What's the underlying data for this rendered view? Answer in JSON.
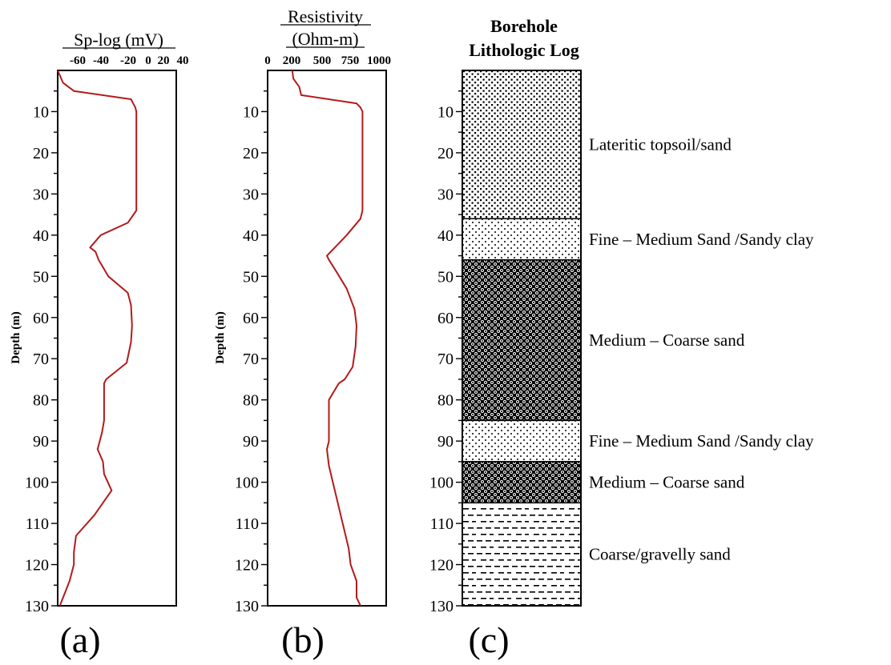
{
  "panel_a": {
    "title": "Sp-log (mV)",
    "tick_labels": [
      "-60",
      "-40",
      "-20",
      "0",
      "20",
      "40"
    ],
    "ylabel": "Depth (m)",
    "y_tick_labels": [
      "10",
      "20",
      "30",
      "40",
      "50",
      "60",
      "70",
      "80",
      "90",
      "100",
      "110",
      "120",
      "130"
    ],
    "panel_label": "(a)"
  },
  "panel_b": {
    "title_line1": "Resistivity",
    "title_line2": "(Ohm-m)",
    "tick_labels": [
      "0",
      "200",
      "500",
      "750",
      "1000"
    ],
    "ylabel": "Depth (m)",
    "y_tick_labels": [
      "10",
      "20",
      "30",
      "40",
      "50",
      "60",
      "70",
      "80",
      "90",
      "100",
      "110",
      "120",
      "130"
    ],
    "panel_label": "(b)"
  },
  "panel_c": {
    "title_line1": "Borehole",
    "title_line2": "Lithologic Log",
    "y_tick_labels": [
      "10",
      "20",
      "30",
      "40",
      "50",
      "60",
      "70",
      "80",
      "90",
      "100",
      "110",
      "120",
      "130"
    ],
    "panel_label": "(c)"
  },
  "colors": {
    "curve": "#b31b1b",
    "axis": "#000000"
  },
  "chart_data": [
    {
      "type": "line",
      "title": "Sp-log (mV)",
      "ylabel": "Depth (m)",
      "xlim": [
        -70,
        40
      ],
      "ylim": [
        0,
        130
      ],
      "y_inverted": true,
      "series": [
        {
          "x": [
            -70,
            -65,
            -55,
            -2,
            2,
            3,
            3,
            3,
            3,
            -5,
            -30,
            -40,
            -35,
            -32,
            -23,
            -5,
            -2,
            -1,
            -2,
            -6,
            -25,
            -27,
            -27,
            -27,
            -29,
            -33,
            -28,
            -27,
            -20,
            -36,
            -53,
            -55,
            -55,
            -59,
            -62,
            -65,
            -68
          ],
          "y": [
            0,
            3,
            5,
            7,
            9,
            10,
            20,
            33,
            34,
            37,
            40,
            43,
            44,
            46,
            50,
            54,
            57,
            62,
            66,
            71,
            75,
            76,
            80,
            85,
            88,
            92,
            95,
            98,
            102,
            108,
            113,
            117,
            120,
            124,
            126,
            128,
            130
          ]
        }
      ]
    },
    {
      "type": "line",
      "title": "Resistivity (Ohm-m)",
      "ylabel": "Depth (m)",
      "xlim": [
        -200,
        1000
      ],
      "ylim": [
        0,
        130
      ],
      "y_inverted": true,
      "series": [
        {
          "x": [
            50,
            60,
            120,
            140,
            700,
            740,
            760,
            760,
            760,
            740,
            600,
            480,
            400,
            420,
            500,
            600,
            680,
            700,
            690,
            660,
            580,
            520,
            420,
            420,
            420,
            420,
            400,
            420,
            460,
            520,
            560,
            620,
            640,
            700,
            700,
            740
          ],
          "y": [
            0,
            2,
            4,
            6,
            8,
            9,
            10,
            20,
            34,
            36,
            40,
            43,
            45,
            46,
            49,
            53,
            58,
            62,
            67,
            72,
            75,
            76,
            80,
            85,
            88,
            90,
            92,
            96,
            100,
            106,
            110,
            116,
            120,
            124,
            128,
            130
          ]
        }
      ]
    },
    {
      "type": "table",
      "title": "Borehole Lithologic Log",
      "columns": [
        "top_m",
        "bottom_m",
        "lithology"
      ],
      "rows": [
        [
          0,
          36,
          "Lateritic topsoil/sand"
        ],
        [
          36,
          46,
          "Fine – Medium Sand /Sandy clay"
        ],
        [
          46,
          85,
          "Medium – Coarse sand"
        ],
        [
          85,
          95,
          "Fine – Medium Sand /Sandy clay"
        ],
        [
          95,
          105,
          "Medium – Coarse sand"
        ],
        [
          105,
          130,
          "Coarse/gravelly sand"
        ]
      ]
    }
  ]
}
